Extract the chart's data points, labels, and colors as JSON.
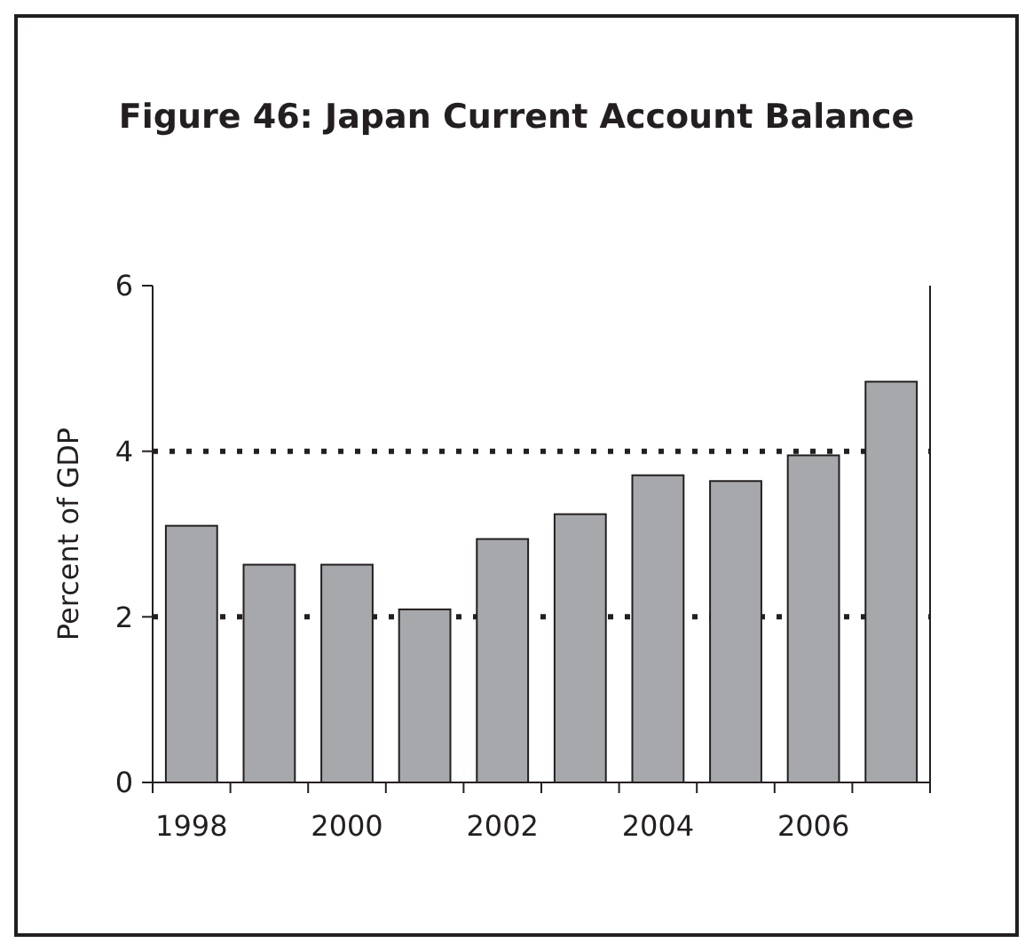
{
  "chart_data": {
    "type": "bar",
    "title": "Figure 46: Japan Current Account Balance",
    "ylabel": "Percent of GDP",
    "categories": [
      "1998",
      null,
      "2000",
      null,
      "2002",
      null,
      "2004",
      null,
      "2006",
      null
    ],
    "values": [
      3.1,
      2.63,
      2.63,
      2.09,
      2.94,
      3.24,
      3.71,
      3.64,
      3.95,
      4.84
    ],
    "color": "#a7a8ab",
    "ylim": [
      0,
      6
    ],
    "yticks": [
      0,
      2,
      4,
      6
    ],
    "grid": "y"
  }
}
